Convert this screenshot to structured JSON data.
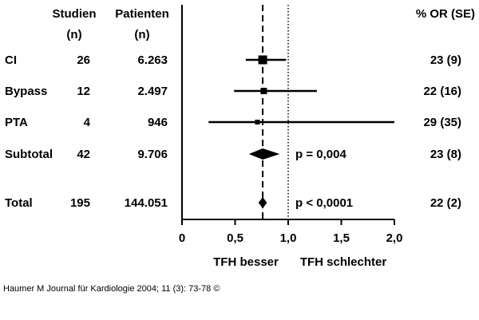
{
  "chart_data": {
    "type": "forest",
    "column_headers": {
      "studies": [
        "Studien",
        "(n)"
      ],
      "patients": [
        "Patienten",
        "(n)"
      ],
      "weight_or": "% OR (SE)"
    },
    "rows": [
      {
        "label": "CI",
        "studies": "26",
        "patients": "6.263",
        "or": 0.76,
        "ci": [
          0.6,
          0.98
        ],
        "right": "23 (9)",
        "shape": "square",
        "p": ""
      },
      {
        "label": "Bypass",
        "studies": "12",
        "patients": "2.497",
        "or": 0.77,
        "ci": [
          0.49,
          1.27
        ],
        "right": "22 (16)",
        "shape": "square",
        "p": ""
      },
      {
        "label": "PTA",
        "studies": "4",
        "patients": "946",
        "or": 0.71,
        "ci": [
          0.25,
          2.0
        ],
        "right": "29 (35)",
        "shape": "square",
        "p": ""
      },
      {
        "label": "Subtotal",
        "studies": "42",
        "patients": "9.706",
        "or": 0.76,
        "ci": [
          0.63,
          0.92
        ],
        "right": "23 (8)",
        "shape": "diamond",
        "p": "p = 0,004"
      },
      {
        "label": "Total",
        "studies": "195",
        "patients": "144.051",
        "or": 0.76,
        "ci": [
          0.72,
          0.8
        ],
        "right": "22 (2)",
        "shape": "diamond",
        "p": "p < 0,0001"
      }
    ],
    "xlim": [
      0,
      2
    ],
    "xticks": [
      "0",
      "0,5",
      "1,0",
      "1,5",
      "2,0"
    ],
    "pooled_line": 0.76,
    "reference_line": 1.0,
    "x_axis_labels": [
      "TFH besser",
      "TFH schlechter"
    ]
  },
  "citation": "Haumer M Journal für Kardiologie 2004; 11 (3): 73-78 ©"
}
